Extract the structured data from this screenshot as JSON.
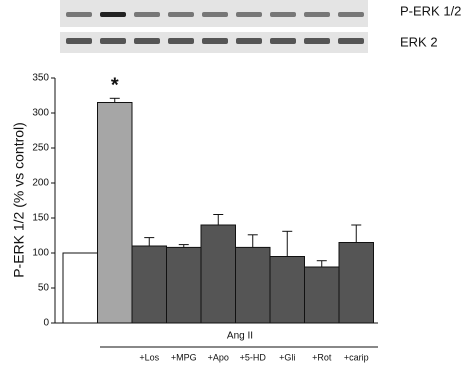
{
  "blot_labels": [
    "P-ERK 1/2",
    "ERK 2"
  ],
  "chart_data": {
    "type": "bar",
    "y_label": "P-ERK 1/2 (% vs control)",
    "group_label": "Ang II",
    "annotation": "*",
    "categories": [
      null,
      null,
      "+Los",
      "+MPG",
      "+Apo",
      "+5-HD",
      "+Gli",
      "+Rot",
      "+carip"
    ],
    "values": [
      100,
      315,
      110,
      108,
      140,
      108,
      95,
      80,
      115
    ],
    "errors": [
      0,
      6,
      12,
      4,
      15,
      18,
      36,
      9,
      25
    ],
    "colors": [
      "#ffffff",
      "#a6a6a6",
      "#555555",
      "#555555",
      "#555555",
      "#555555",
      "#555555",
      "#555555",
      "#555555"
    ],
    "ylim": [
      0,
      350
    ],
    "yticks": [
      0,
      50,
      100,
      150,
      200,
      250,
      300,
      350
    ]
  }
}
